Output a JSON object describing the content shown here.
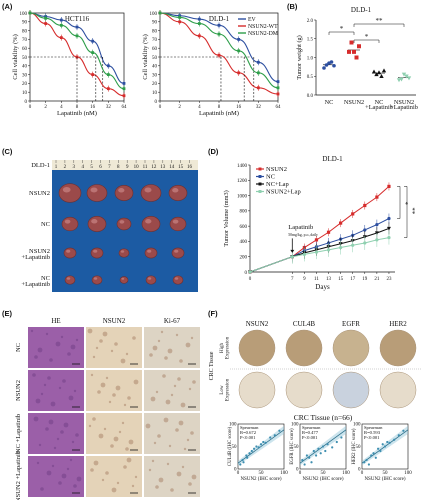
{
  "panels": {
    "A": {
      "label": "(A)"
    },
    "B": {
      "label": "(B)"
    },
    "C": {
      "label": "(C)"
    },
    "D": {
      "label": "(D)"
    },
    "E": {
      "label": "(E)"
    },
    "F": {
      "label": "(F)"
    }
  },
  "colors": {
    "ev": "#2d4fa0",
    "wt": "#d62c2c",
    "dm": "#2e9e4a",
    "nc_lap": "#111111",
    "nsun2_lap": "#8fd0b0",
    "tumor": "#9b4a4a",
    "he": "#9b5fa8",
    "ihc": "#d9c3a3",
    "corr_dot": "#3f8fb0"
  },
  "panelC": {
    "ruler": [
      "1",
      "2",
      "3",
      "4",
      "5",
      "6",
      "7",
      "8",
      "9",
      "10",
      "11",
      "12",
      "13",
      "14",
      "15",
      "16"
    ],
    "row_labels": [
      "DLD-1",
      "NSUN2",
      "NC",
      "NSUN2\n+Lapatinib",
      "NC\n+Lapatinib"
    ]
  },
  "panelE": {
    "col_headers": [
      "HE",
      "NSUN2",
      "Ki-67"
    ],
    "row_labels": [
      "NC",
      "NSUN2",
      "NC\n+Lapatinib",
      "NSUN2\n+Lapatinib"
    ]
  },
  "panelF": {
    "col_headers": [
      "NSUN2",
      "CUL4B",
      "EGFR",
      "HER2"
    ],
    "side_label": "CRC Tissue",
    "row_labels": [
      "High\nExpression",
      "Low\nExpression"
    ],
    "corr_title": "CRC  Tissue (n=66)"
  },
  "chart_data": [
    {
      "id": "A1",
      "type": "line",
      "title": "HCT116",
      "xlabel": "Lapatinib (nM)",
      "ylabel": "Cell viability (%)",
      "x_ticks": [
        "0",
        "2",
        "4",
        "8",
        "16",
        "32",
        "64"
      ],
      "x": [
        0,
        2,
        4,
        8,
        16,
        32,
        64
      ],
      "ylim": [
        0,
        100
      ],
      "y_ticks": [
        0,
        10,
        20,
        30,
        40,
        50,
        60,
        70,
        80,
        90,
        100
      ],
      "ic50_ticks_on_axis": true,
      "series": [
        {
          "color_key": "ev",
          "values": [
            100,
            96,
            92,
            84,
            68,
            40,
            20
          ]
        },
        {
          "color_key": "wt",
          "values": [
            100,
            88,
            72,
            50,
            30,
            14,
            6
          ]
        },
        {
          "color_key": "dm",
          "values": [
            100,
            94,
            86,
            74,
            55,
            30,
            14
          ]
        }
      ]
    },
    {
      "id": "A2",
      "type": "line",
      "title": "DLD-1",
      "xlabel": "Lapatinib (nM)",
      "ylabel": "Cell viability (%)",
      "x_ticks": [
        "0",
        "2",
        "4",
        "8",
        "16",
        "32",
        "64"
      ],
      "x": [
        0,
        2,
        4,
        8,
        16,
        32,
        64
      ],
      "ylim": [
        0,
        100
      ],
      "y_ticks": [
        0,
        10,
        20,
        30,
        40,
        50,
        60,
        70,
        80,
        90,
        100
      ],
      "series": [
        {
          "name": "EV",
          "color_key": "ev",
          "values": [
            100,
            97,
            93,
            86,
            70,
            44,
            22
          ]
        },
        {
          "name": "NSUN2-WT",
          "color_key": "wt",
          "values": [
            100,
            90,
            74,
            52,
            32,
            15,
            8
          ]
        },
        {
          "name": "NSUN2-DM",
          "color_key": "dm",
          "values": [
            100,
            95,
            88,
            76,
            57,
            32,
            15
          ]
        }
      ]
    },
    {
      "id": "B",
      "type": "scatter",
      "title": "DLD-1",
      "ylabel": "Tumor weight (g)",
      "categories": [
        "NC",
        "NSUN2",
        "NC\n+Lapatinib",
        "NSUN2\n+Lapatinib"
      ],
      "ylim": [
        0,
        2.0
      ],
      "y_ticks": [
        "0.0",
        "0.5",
        "1.0",
        "1.5",
        "2.0"
      ],
      "values": [
        [
          0.72,
          0.8,
          0.85,
          0.88,
          0.78
        ],
        [
          1.15,
          1.4,
          1.15,
          1.0,
          1.3
        ],
        [
          0.62,
          0.55,
          0.6,
          0.5,
          0.65
        ],
        [
          0.4,
          0.42,
          0.55,
          0.5,
          0.45
        ]
      ],
      "markers": [
        "circle",
        "square",
        "triangle-up",
        "triangle-down"
      ],
      "color_keys": [
        "ev",
        "wt",
        "nc_lap",
        "nsun2_lap"
      ],
      "sig": [
        {
          "between": [
            0,
            1
          ],
          "label": "*"
        },
        {
          "between": [
            1,
            2
          ],
          "label": "*"
        },
        {
          "between": [
            1,
            3
          ],
          "label": "**"
        }
      ]
    },
    {
      "id": "D",
      "type": "line",
      "title": "DLD-1",
      "xlabel": "Days",
      "ylabel": "Tumor Volume (mm3)",
      "x": [
        0,
        7,
        9,
        11,
        13,
        15,
        17,
        19,
        21,
        23
      ],
      "x_ticks": [
        "0",
        "7",
        "9",
        "11",
        "13",
        "15",
        "17",
        "19",
        "21",
        "23"
      ],
      "ylim": [
        0,
        1400
      ],
      "y_ticks": [
        0,
        200,
        400,
        600,
        800,
        1000,
        1200,
        1400
      ],
      "annotation": "Lapatinib",
      "annotation_sub": "50mg/kg, p.o.,daily",
      "series": [
        {
          "name": "NSUN2",
          "color_key": "wt",
          "values": [
            0,
            200,
            320,
            420,
            520,
            640,
            760,
            870,
            980,
            1120
          ]
        },
        {
          "name": "NC",
          "color_key": "ev",
          "values": [
            0,
            200,
            280,
            330,
            380,
            430,
            480,
            550,
            620,
            700
          ]
        },
        {
          "name": "NC+Lap",
          "color_key": "nc_lap",
          "values": [
            0,
            200,
            250,
            290,
            330,
            370,
            410,
            460,
            510,
            570
          ]
        },
        {
          "name": "NSUN2+Lap",
          "color_key": "nsun2_lap",
          "values": [
            0,
            200,
            230,
            260,
            290,
            320,
            350,
            380,
            420,
            450
          ]
        }
      ],
      "sig": [
        "*",
        "**"
      ]
    },
    {
      "id": "F1",
      "type": "scatter",
      "xlabel": "NSUN2 (IHC score)",
      "ylabel": "CUL4B (IHC score)",
      "annotation": [
        "Spearman",
        "R=0.672",
        "P<0.001"
      ],
      "xlim": [
        0,
        100
      ],
      "x_ticks": [
        0,
        50,
        100
      ],
      "ylim": [
        0,
        100
      ],
      "y_ticks": [
        0,
        50,
        100
      ],
      "x": [
        5,
        10,
        12,
        18,
        20,
        25,
        30,
        35,
        40,
        45,
        50,
        55,
        60,
        70,
        80,
        90
      ],
      "y": [
        10,
        20,
        15,
        30,
        25,
        35,
        40,
        45,
        50,
        48,
        55,
        60,
        58,
        70,
        75,
        85
      ]
    },
    {
      "id": "F2",
      "type": "scatter",
      "xlabel": "NSUN2 (IHC score)",
      "ylabel": "EGFR (IHC score)",
      "annotation": [
        "Spearman",
        "R=0.477",
        "P<0.001"
      ],
      "xlim": [
        0,
        100
      ],
      "x_ticks": [
        0,
        50,
        100
      ],
      "ylim": [
        0,
        100
      ],
      "y_ticks": [
        0,
        50,
        100
      ],
      "x": [
        5,
        10,
        15,
        20,
        25,
        30,
        35,
        40,
        45,
        50,
        55,
        60,
        70,
        80,
        90
      ],
      "y": [
        20,
        10,
        30,
        25,
        15,
        40,
        30,
        45,
        35,
        50,
        40,
        55,
        48,
        60,
        70
      ]
    },
    {
      "id": "F3",
      "type": "scatter",
      "xlabel": "NSUN2 (IHC score)",
      "ylabel": "HER2 (IHC score)",
      "annotation": [
        "Spearman",
        "R=0.593",
        "P<0.001"
      ],
      "xlim": [
        0,
        100
      ],
      "x_ticks": [
        0,
        50,
        100
      ],
      "ylim": [
        0,
        100
      ],
      "y_ticks": [
        0,
        50,
        100
      ],
      "x": [
        5,
        10,
        15,
        20,
        25,
        30,
        35,
        40,
        45,
        50,
        55,
        60,
        70,
        80,
        90
      ],
      "y": [
        15,
        20,
        10,
        30,
        35,
        25,
        45,
        40,
        55,
        50,
        60,
        58,
        65,
        75,
        85
      ]
    }
  ]
}
